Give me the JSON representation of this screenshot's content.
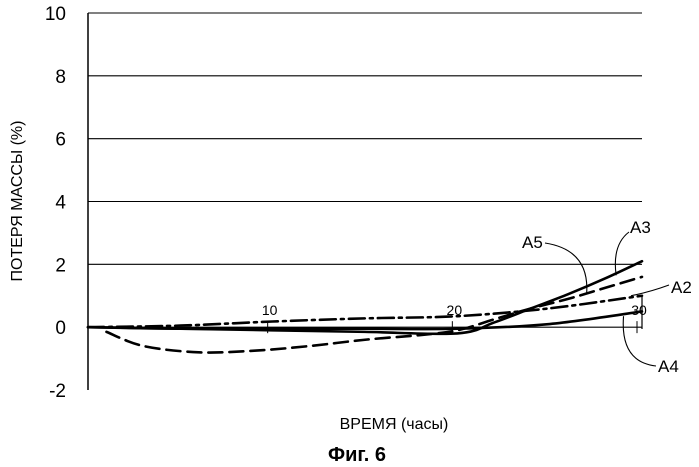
{
  "chart_data": {
    "type": "line",
    "xlabel": "ВРЕМЯ (часы)",
    "ylabel": "ПОТЕРЯ МАССЫ (%)",
    "caption": "Фиг. 6",
    "xlim": [
      0,
      30
    ],
    "ylim": [
      -2,
      10
    ],
    "yticks": [
      "-2",
      "0",
      "2",
      "4",
      "6",
      "8",
      "10"
    ],
    "xticks": [
      "10",
      "20",
      "30"
    ],
    "grid": "horizontal",
    "series": [
      {
        "name": "A3",
        "style": "solid",
        "x": [
          0,
          5,
          10,
          15,
          20,
          22,
          24,
          26,
          28,
          30
        ],
        "y": [
          0,
          -0.05,
          -0.1,
          -0.15,
          -0.2,
          0.15,
          0.6,
          1.05,
          1.55,
          2.1
        ]
      },
      {
        "name": "A5",
        "style": "dashed",
        "x": [
          1,
          3,
          6,
          9,
          12,
          15,
          18,
          20,
          22,
          24,
          26,
          28,
          30
        ],
        "y": [
          -0.15,
          -0.6,
          -0.8,
          -0.75,
          -0.6,
          -0.4,
          -0.25,
          -0.1,
          0.25,
          0.6,
          0.9,
          1.25,
          1.6
        ]
      },
      {
        "name": "A2",
        "style": "dash-dot",
        "x": [
          0,
          5,
          10,
          15,
          20,
          25,
          30
        ],
        "y": [
          0,
          0.05,
          0.18,
          0.28,
          0.35,
          0.6,
          1.0
        ]
      },
      {
        "name": "A4",
        "style": "solid",
        "x": [
          0,
          5,
          10,
          15,
          20,
          25,
          30
        ],
        "y": [
          0,
          -0.05,
          -0.05,
          -0.05,
          -0.05,
          0.1,
          0.5
        ]
      }
    ]
  }
}
